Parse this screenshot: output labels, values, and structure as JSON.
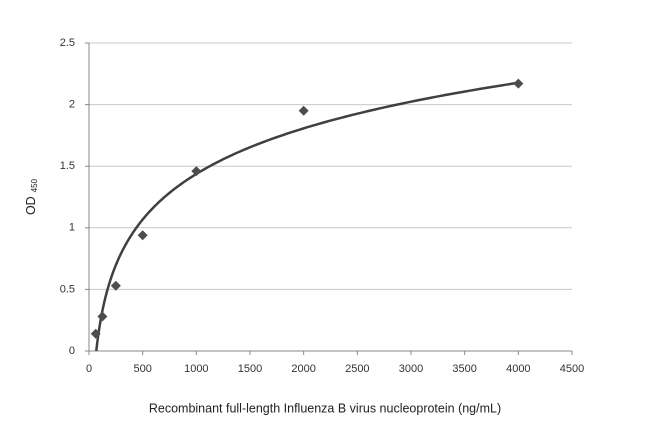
{
  "chart_data": {
    "type": "scatter",
    "x_label": "Recombinant full-length Influenza B virus nucleoprotein  (ng/mL)",
    "y_label": "OD",
    "y_label_subscript": "450",
    "x": [
      62.5,
      125,
      250,
      500,
      1000,
      2000,
      4000
    ],
    "values": [
      0.14,
      0.28,
      0.53,
      0.94,
      1.46,
      1.95,
      2.17
    ],
    "color": "#4d4d4d",
    "trendline": "log",
    "trendline_color": "#404040",
    "xlim": [
      0,
      4500
    ],
    "xticks": [
      0,
      500,
      1000,
      1500,
      2000,
      2500,
      3000,
      3500,
      4000,
      4500
    ],
    "ylim": [
      0,
      2.5
    ],
    "yticks": [
      0,
      0.5,
      1,
      1.5,
      2,
      2.5
    ],
    "grid": true
  }
}
